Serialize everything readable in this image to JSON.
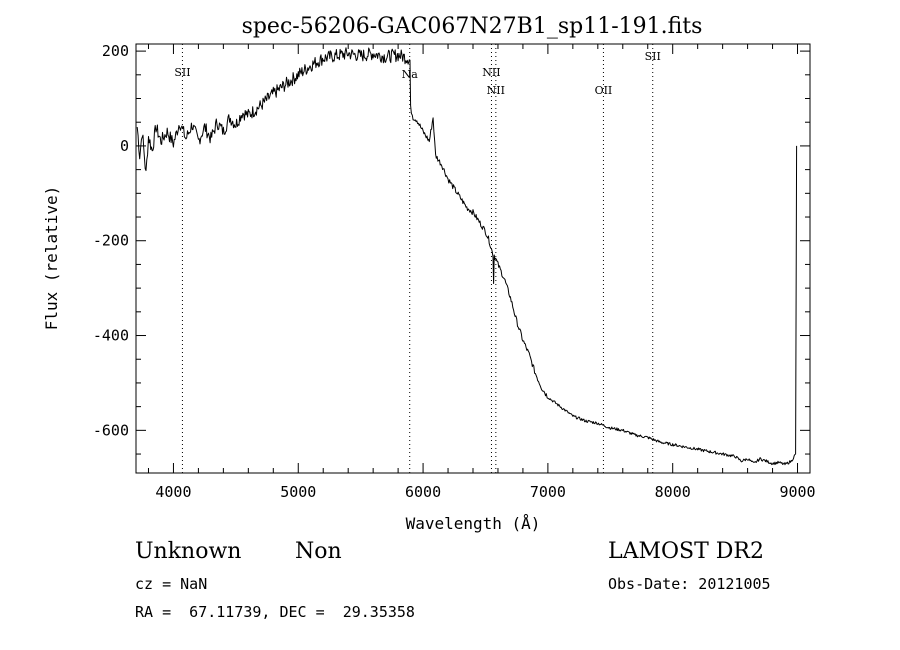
{
  "chart_data": {
    "type": "line",
    "title": "spec-56206-GAC067N27B1_sp11-191.fits",
    "xlabel": "Wavelength (Å)",
    "ylabel": "Flux (relative)",
    "xlim": [
      3700,
      9100
    ],
    "ylim": [
      -690,
      215
    ],
    "xticks": [
      4000,
      5000,
      6000,
      7000,
      8000,
      9000
    ],
    "yticks": [
      -600,
      -400,
      -200,
      0,
      200
    ],
    "grid": false,
    "series": [
      {
        "x": [
          3710,
          3730,
          3750,
          3780,
          3800,
          3830,
          3860,
          3900,
          3950,
          4000,
          4050,
          4100,
          4150,
          4200,
          4250,
          4300,
          4350,
          4400,
          4450,
          4500,
          4550,
          4600,
          4700,
          4800,
          4900,
          5000,
          5100,
          5200,
          5300,
          5400,
          5500,
          5600,
          5700,
          5800,
          5880,
          5895,
          5900,
          5920,
          5950,
          6000,
          6050,
          6080,
          6100,
          6150,
          6200,
          6250,
          6300,
          6350,
          6400,
          6450,
          6500,
          6530,
          6560,
          6565,
          6570,
          6600,
          6650,
          6700,
          6750,
          6800,
          6850,
          6900,
          6950,
          7000,
          7050,
          7100,
          7150,
          7200,
          7300,
          7400,
          7500,
          7600,
          7700,
          7800,
          7900,
          8000,
          8100,
          8200,
          8300,
          8400,
          8500,
          8550,
          8600,
          8650,
          8700,
          8750,
          8800,
          8850,
          8900,
          8950,
          8985
        ],
        "y": [
          40,
          -20,
          30,
          -60,
          20,
          -10,
          40,
          10,
          30,
          5,
          50,
          15,
          45,
          10,
          40,
          15,
          50,
          30,
          60,
          45,
          70,
          65,
          85,
          110,
          130,
          150,
          170,
          185,
          190,
          195,
          190,
          195,
          188,
          192,
          185,
          180,
          80,
          60,
          55,
          30,
          10,
          60,
          -20,
          -40,
          -70,
          -90,
          -110,
          -130,
          -140,
          -160,
          -180,
          -200,
          -230,
          -290,
          -230,
          -250,
          -280,
          -320,
          -370,
          -410,
          -440,
          -480,
          -510,
          -530,
          -540,
          -550,
          -560,
          -570,
          -580,
          -585,
          -595,
          -600,
          -610,
          -615,
          -625,
          -630,
          -635,
          -640,
          -645,
          -650,
          -655,
          -665,
          -660,
          -670,
          -660,
          -665,
          -670,
          -668,
          -672,
          -665,
          -650
        ]
      }
    ],
    "lines": [
      {
        "x": 4072,
        "label": "SII"
      },
      {
        "x": 5893,
        "label": "Na"
      },
      {
        "x": 6548,
        "label": "NII"
      },
      {
        "x": 6583,
        "label": "NII"
      },
      {
        "x": 7445,
        "label": "OII"
      },
      {
        "x": 7840,
        "label": "SII"
      }
    ]
  },
  "info": {
    "class": "Unknown",
    "subclass": "Non",
    "cz": "cz = NaN",
    "coords": "RA =  67.11739, DEC =  29.35358",
    "survey": "LAMOST DR2",
    "obs_date": "Obs-Date: 20121005"
  }
}
